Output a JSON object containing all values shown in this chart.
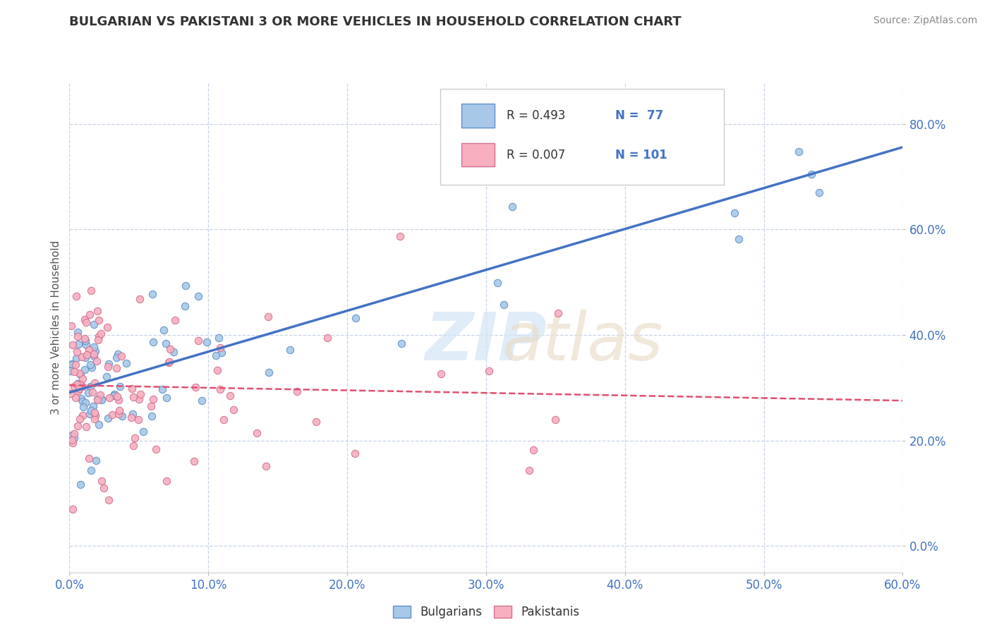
{
  "title": "BULGARIAN VS PAKISTANI 3 OR MORE VEHICLES IN HOUSEHOLD CORRELATION CHART",
  "source": "Source: ZipAtlas.com",
  "xlim": [
    0.0,
    0.6
  ],
  "ylim": [
    -0.05,
    0.88
  ],
  "ylabel": "3 or more Vehicles in Household",
  "xtick_vals": [
    0.0,
    0.1,
    0.2,
    0.3,
    0.4,
    0.5,
    0.6
  ],
  "ytick_vals": [
    0.0,
    0.2,
    0.4,
    0.6,
    0.8
  ],
  "xtick_labels": [
    "0.0%",
    "10.0%",
    "20.0%",
    "30.0%",
    "40.0%",
    "50.0%",
    "60.0%"
  ],
  "ytick_labels": [
    "0.0%",
    "20.0%",
    "40.0%",
    "60.0%",
    "80.0%"
  ],
  "legend_r1": "R = 0.493",
  "legend_n1": "N =  77",
  "legend_r2": "R = 0.007",
  "legend_n2": "N = 101",
  "bulgarian_fill": "#a8c8e8",
  "bulgarian_edge": "#6090c8",
  "pakistani_fill": "#f8b0c0",
  "pakistani_edge": "#d07090",
  "trendline_blue": "#4472c4",
  "trendline_pink": "#e05070",
  "grid_color": "#c8d4e8",
  "background": "#ffffff",
  "tick_color": "#4472c4",
  "title_color": "#333333",
  "source_color": "#888888",
  "watermark_zip_color": "#d4e4f4",
  "watermark_atlas_color": "#e8dcc8"
}
